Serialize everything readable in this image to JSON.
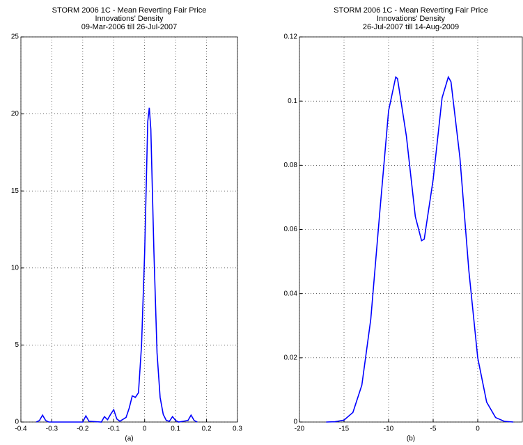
{
  "chart_data": [
    {
      "type": "line",
      "title": [
        "STORM 2006 1C - Mean Reverting Fair Price",
        "Innovations' Density",
        "09-Mar-2006 till 26-Jul-2007"
      ],
      "caption": "(a)",
      "x": [
        -0.35,
        -0.34,
        -0.33,
        -0.32,
        -0.31,
        -0.2,
        -0.19,
        -0.18,
        -0.14,
        -0.13,
        -0.12,
        -0.11,
        -0.1,
        -0.09,
        -0.08,
        -0.06,
        -0.05,
        -0.04,
        -0.03,
        -0.02,
        -0.01,
        0,
        0.01,
        0.015,
        0.02,
        0.03,
        0.04,
        0.05,
        0.06,
        0.07,
        0.08,
        0.09,
        0.1,
        0.11,
        0.14,
        0.15,
        0.16,
        0.17
      ],
      "series": [
        {
          "color": "#0000ff",
          "values": [
            0,
            0.1,
            0.45,
            0.1,
            0,
            0,
            0.4,
            0.05,
            0,
            0.35,
            0.15,
            0.5,
            0.8,
            0.2,
            0.05,
            0.3,
            0.9,
            1.7,
            1.6,
            1.9,
            5,
            11,
            19.5,
            20.4,
            19,
            11,
            4.5,
            1.6,
            0.5,
            0.1,
            0.05,
            0.35,
            0.1,
            0,
            0.1,
            0.45,
            0.1,
            0
          ]
        }
      ],
      "xlim": [
        -0.4,
        0.3
      ],
      "xticks": [
        -0.4,
        -0.3,
        -0.2,
        -0.1,
        0,
        0.1,
        0.2,
        0.3
      ],
      "ylim": [
        0,
        25
      ],
      "yticks": [
        0,
        5,
        10,
        15,
        20,
        25
      ],
      "grid": true
    },
    {
      "type": "line",
      "title": [
        "STORM 2006 1C - Mean Reverting Fair Price",
        "Innovations' Density",
        "26-Jul-2007 till 14-Aug-2009"
      ],
      "caption": "(b)",
      "x": [
        -17,
        -16,
        -15,
        -14,
        -13,
        -12,
        -11,
        -10,
        -9.2,
        -9,
        -8,
        -7,
        -6.3,
        -6,
        -5,
        -4,
        -3.3,
        -3,
        -2,
        -1,
        0,
        1,
        2,
        3,
        4
      ],
      "series": [
        {
          "color": "#0000ff",
          "values": [
            0,
            0.0001,
            0.0006,
            0.003,
            0.0115,
            0.032,
            0.065,
            0.097,
            0.1075,
            0.107,
            0.089,
            0.064,
            0.0565,
            0.057,
            0.0756,
            0.101,
            0.1075,
            0.106,
            0.0824,
            0.0473,
            0.02,
            0.0062,
            0.0014,
            0.0002,
            0
          ]
        }
      ],
      "xlim": [
        -20,
        5
      ],
      "xticks": [
        -20,
        -15,
        -10,
        -5,
        0
      ],
      "ylim": [
        0,
        0.12
      ],
      "yticks": [
        0,
        0.02,
        0.04,
        0.06,
        0.08,
        0.1,
        0.12
      ],
      "grid": true
    }
  ]
}
